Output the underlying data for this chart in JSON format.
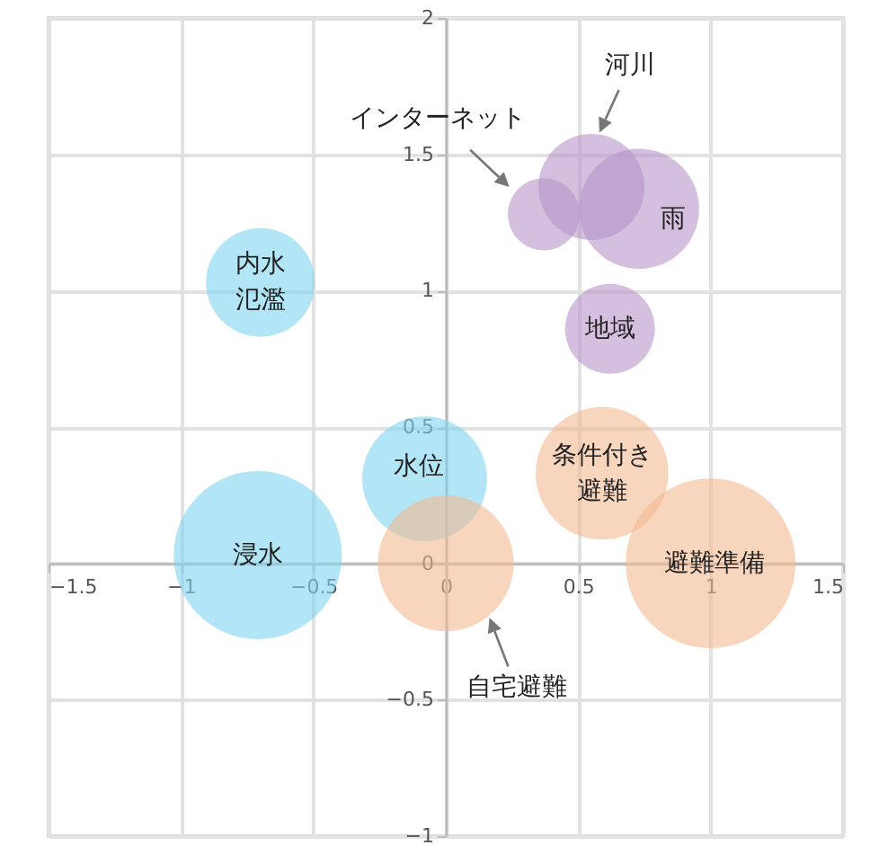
{
  "chart_data": {
    "type": "bubble",
    "xlim": [
      -1.5,
      1.5
    ],
    "ylim": [
      -1,
      2
    ],
    "xticks": [
      -1.5,
      -1,
      -0.5,
      0,
      0.5,
      1,
      1.5
    ],
    "yticks": [
      -1,
      -0.5,
      0,
      0.5,
      1,
      1.5,
      2
    ],
    "grid": true,
    "series": [
      {
        "color": "#7fd5f2",
        "x": [
          -0.71,
          -0.08,
          -0.7
        ],
        "values": [
          0.03,
          0.31,
          1.03
        ],
        "sizes": [
          0.98,
          0.54,
          0.41
        ]
      },
      {
        "color": "#f3b991",
        "x": [
          0,
          0.59,
          1.0
        ],
        "values": [
          0,
          0.33,
          0
        ],
        "sizes": [
          0.64,
          0.61,
          1
        ]
      },
      {
        "color": "#b794ca",
        "x": [
          0.62,
          0.73,
          0.55,
          0.37
        ],
        "values": [
          0.86,
          1.3,
          1.38,
          1.28
        ],
        "sizes": [
          0.28,
          0.5,
          0.39,
          0.18
        ]
      }
    ],
    "annotations": [
      {
        "text": "浸水",
        "x": -0.71,
        "y": 0.03
      },
      {
        "text": "水位",
        "x": -0.08,
        "y": 0.31
      },
      {
        "text": "内水氾濫",
        "x": -0.7,
        "y": 1.03
      },
      {
        "text": "自宅避難",
        "x": 0.165,
        "y": -0.2
      },
      {
        "text": "条件付き避難",
        "x": 0.59,
        "y": 0.33
      },
      {
        "text": "避難準備",
        "x": 1.0,
        "y": 0
      },
      {
        "text": "地域",
        "x": 0.62,
        "y": 0.86
      },
      {
        "text": "雨",
        "x": 0.73,
        "y": 1.3
      },
      {
        "text": "河川",
        "x": 0.58,
        "y": 1.58
      },
      {
        "text": "インターネット",
        "x": 0.24,
        "y": 1.38
      }
    ]
  }
}
